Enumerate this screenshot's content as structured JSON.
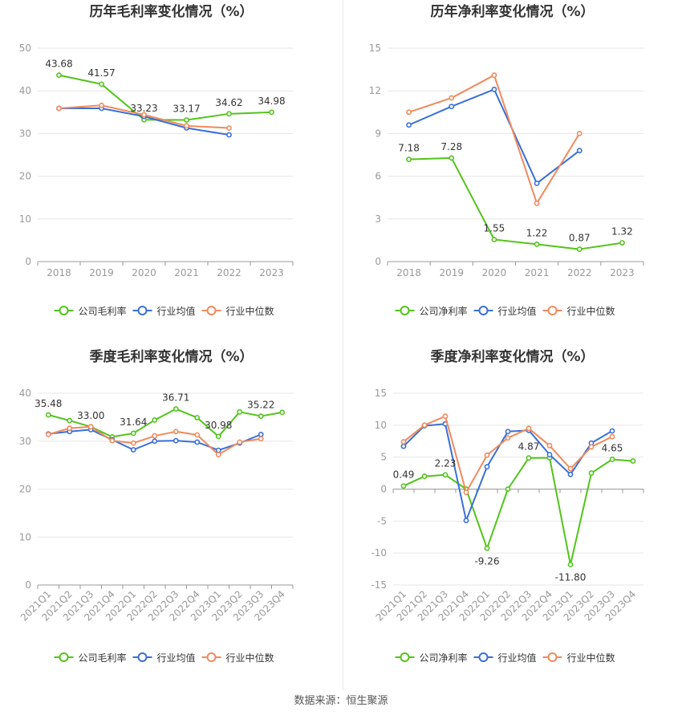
{
  "source_note": "数据来源：恒生聚源",
  "chart_data": [
    {
      "type": "line",
      "title": "历年毛利率变化情况（%）",
      "categories": [
        "2018",
        "2019",
        "2020",
        "2021",
        "2022",
        "2023"
      ],
      "ylim": [
        0,
        50
      ],
      "yticks": [
        0,
        10,
        20,
        30,
        40,
        50
      ],
      "grid": true,
      "legend_position": "bottom",
      "series": [
        {
          "name": "公司毛利率",
          "color": "#52c41a",
          "values": [
            43.68,
            41.57,
            33.23,
            33.17,
            34.62,
            34.98
          ],
          "labels": [
            "43.68",
            "41.57",
            "33.23",
            "33.17",
            "34.62",
            "34.98"
          ]
        },
        {
          "name": "行业均值",
          "color": "#3a6fd8",
          "values": [
            35.9,
            35.9,
            34.0,
            31.3,
            29.7,
            null
          ]
        },
        {
          "name": "行业中位数",
          "color": "#f08a5d",
          "values": [
            35.9,
            36.6,
            34.4,
            31.8,
            31.3,
            null
          ]
        }
      ]
    },
    {
      "type": "line",
      "title": "历年净利率变化情况（%）",
      "categories": [
        "2018",
        "2019",
        "2020",
        "2021",
        "2022",
        "2023"
      ],
      "ylim": [
        0,
        15
      ],
      "yticks": [
        0,
        3,
        6,
        9,
        12,
        15
      ],
      "grid": true,
      "legend_position": "bottom",
      "series": [
        {
          "name": "公司净利率",
          "color": "#52c41a",
          "values": [
            7.18,
            7.28,
            1.55,
            1.22,
            0.87,
            1.32
          ],
          "labels": [
            "7.18",
            "7.28",
            "1.55",
            "1.22",
            "0.87",
            "1.32"
          ]
        },
        {
          "name": "行业均值",
          "color": "#3a6fd8",
          "values": [
            9.6,
            10.9,
            12.1,
            5.5,
            7.8,
            null
          ]
        },
        {
          "name": "行业中位数",
          "color": "#f08a5d",
          "values": [
            10.5,
            11.5,
            13.1,
            4.1,
            9.0,
            null
          ]
        }
      ]
    },
    {
      "type": "line",
      "title": "季度毛利率变化情况（%）",
      "categories": [
        "2021Q1",
        "2021Q2",
        "2021Q3",
        "2021Q4",
        "2022Q1",
        "2022Q2",
        "2022Q3",
        "2022Q4",
        "2023Q1",
        "2023Q2",
        "2023Q3",
        "2023Q4"
      ],
      "ylim": [
        0,
        40
      ],
      "yticks": [
        0,
        10,
        20,
        30,
        40
      ],
      "grid": true,
      "legend_position": "bottom",
      "series": [
        {
          "name": "公司毛利率",
          "color": "#52c41a",
          "values": [
            35.48,
            34.3,
            33.0,
            30.9,
            31.64,
            34.4,
            36.71,
            34.9,
            30.98,
            36.1,
            35.22,
            36.0
          ],
          "labels": [
            "35.48",
            "",
            "33.00",
            "",
            "31.64",
            "",
            "36.71",
            "",
            "30.98",
            "",
            "35.22",
            ""
          ]
        },
        {
          "name": "行业均值",
          "color": "#3a6fd8",
          "values": [
            31.5,
            32.0,
            32.4,
            30.3,
            28.2,
            30.0,
            30.1,
            29.8,
            28.1,
            29.6,
            31.4,
            null
          ]
        },
        {
          "name": "行业中位数",
          "color": "#f08a5d",
          "values": [
            31.4,
            32.7,
            33.0,
            30.1,
            29.6,
            31.1,
            32.0,
            31.3,
            27.2,
            29.8,
            30.5,
            null
          ]
        }
      ]
    },
    {
      "type": "line",
      "title": "季度净利率变化情况（%）",
      "categories": [
        "2021Q1",
        "2021Q2",
        "2021Q3",
        "2021Q4",
        "2022Q1",
        "2022Q2",
        "2022Q3",
        "2022Q4",
        "2023Q1",
        "2023Q2",
        "2023Q3",
        "2023Q4"
      ],
      "ylim": [
        -15,
        15
      ],
      "yticks": [
        -15,
        -10,
        -5,
        0,
        5,
        10,
        15
      ],
      "grid": true,
      "legend_position": "bottom",
      "series": [
        {
          "name": "公司净利率",
          "color": "#52c41a",
          "values": [
            0.49,
            2.0,
            2.23,
            0.0,
            -9.26,
            0.0,
            4.87,
            4.9,
            -11.8,
            2.5,
            4.65,
            4.4
          ],
          "labels": [
            "0.49",
            "",
            "2.23",
            "",
            "-9.26",
            "",
            "4.87",
            "",
            "-11.80",
            "",
            "4.65",
            ""
          ]
        },
        {
          "name": "行业均值",
          "color": "#3a6fd8",
          "values": [
            6.7,
            9.9,
            10.2,
            -4.9,
            3.5,
            9.0,
            9.2,
            5.4,
            2.3,
            7.2,
            9.1,
            null
          ]
        },
        {
          "name": "行业中位数",
          "color": "#f08a5d",
          "values": [
            7.4,
            10.0,
            11.4,
            -0.5,
            5.3,
            8.0,
            9.5,
            6.8,
            3.2,
            6.6,
            8.2,
            null
          ]
        }
      ]
    }
  ]
}
